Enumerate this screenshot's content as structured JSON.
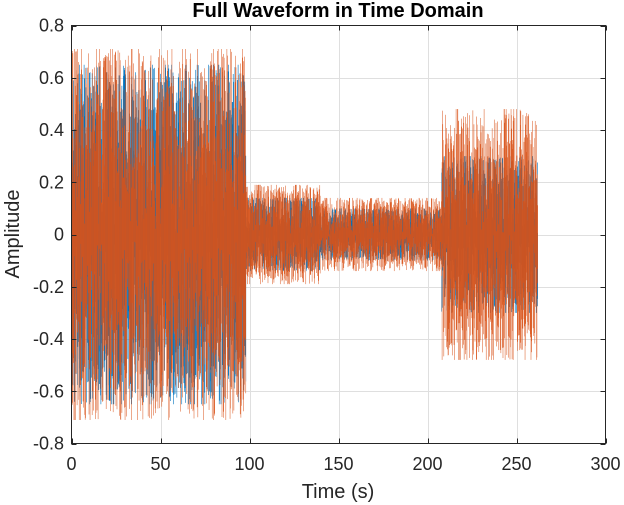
{
  "chart_data": {
    "type": "line",
    "title": "Full Waveform in Time Domain",
    "xlabel": "Time (s)",
    "ylabel": "Amplitude",
    "xlim": [
      0,
      300
    ],
    "ylim": [
      -0.8,
      0.8
    ],
    "xticks": [
      0,
      50,
      100,
      150,
      200,
      250,
      300
    ],
    "yticks": [
      -0.8,
      -0.6,
      -0.4,
      -0.2,
      0,
      0.2,
      0.4,
      0.6,
      0.8
    ],
    "xtick_labels": [
      "0",
      "50",
      "100",
      "150",
      "200",
      "250",
      "300"
    ],
    "ytick_labels": [
      "-0.8",
      "-0.6",
      "-0.4",
      "-0.2",
      "0",
      "0.2",
      "0.4",
      "0.6",
      "0.8"
    ],
    "grid": true,
    "legend": "none",
    "series": [
      {
        "color": "#0072BD",
        "segments": [
          {
            "t": [
              0,
              98
            ],
            "peak": 0.65
          },
          {
            "t": [
              98,
              140
            ],
            "peak": 0.14
          },
          {
            "t": [
              140,
              208
            ],
            "peak": 0.1
          },
          {
            "t": [
              208,
              262
            ],
            "peak": 0.3
          }
        ]
      },
      {
        "color": "#D95319",
        "segments": [
          {
            "t": [
              0,
              98
            ],
            "peak": 0.71
          },
          {
            "t": [
              98,
              140
            ],
            "peak": 0.19
          },
          {
            "t": [
              140,
              208
            ],
            "peak": 0.14
          },
          {
            "t": [
              208,
              262
            ],
            "peak": 0.48
          }
        ]
      }
    ]
  }
}
